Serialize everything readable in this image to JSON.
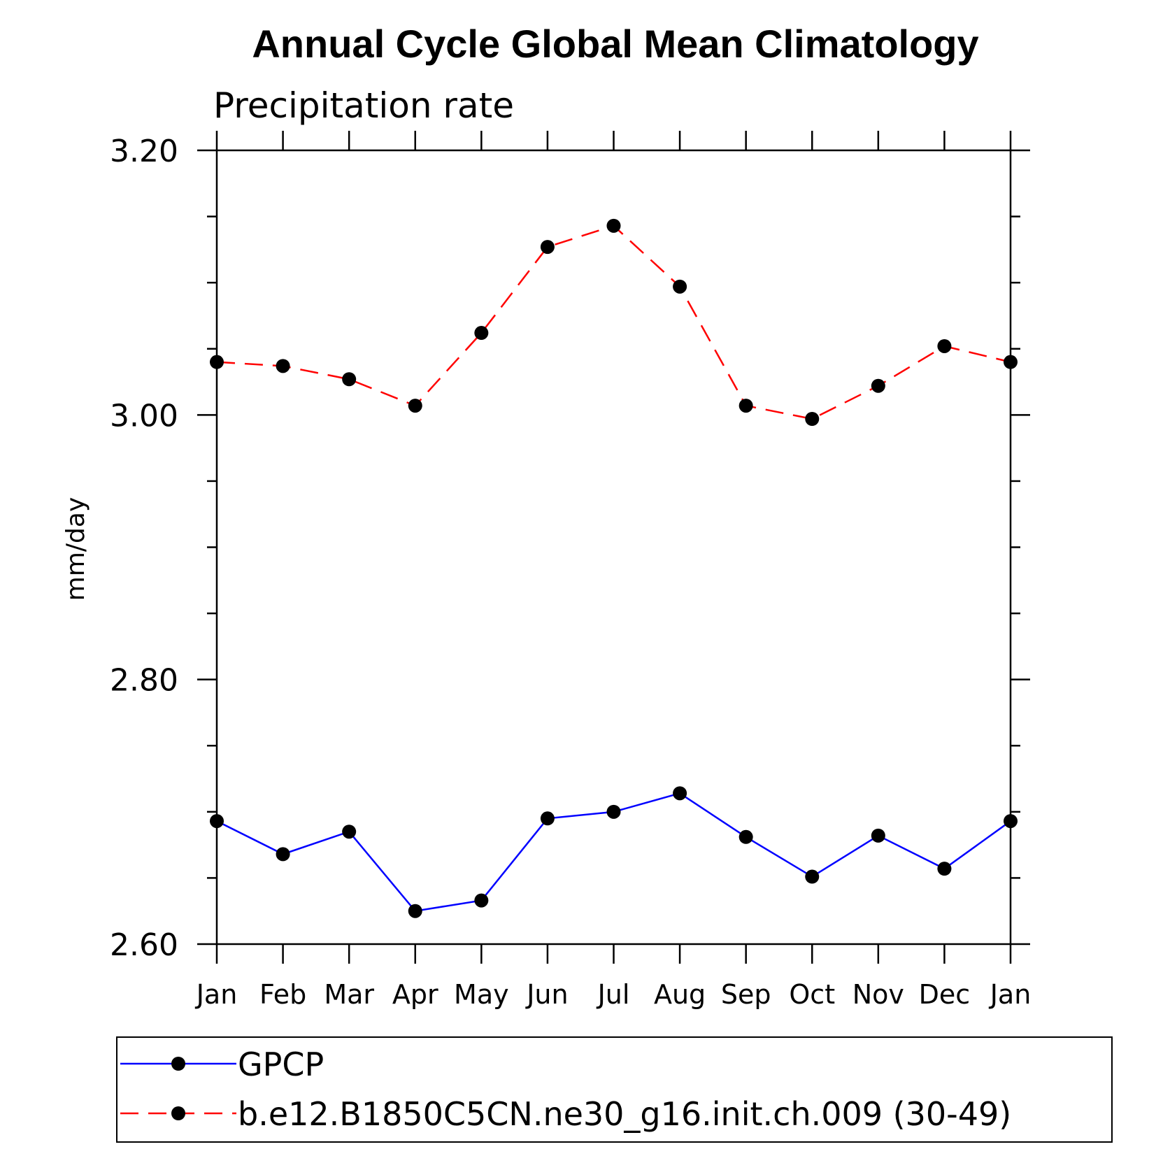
{
  "chart_data": {
    "type": "line",
    "title": "Annual Cycle Global Mean Climatology",
    "subtitle": "Precipitation rate",
    "xlabel": "",
    "ylabel": "mm/day",
    "categories": [
      "Jan",
      "Feb",
      "Mar",
      "Apr",
      "May",
      "Jun",
      "Jul",
      "Aug",
      "Sep",
      "Oct",
      "Nov",
      "Dec",
      "Jan"
    ],
    "ylim": [
      2.6,
      3.2
    ],
    "yticks": [
      2.6,
      2.8,
      3.0,
      3.2
    ],
    "ytick_labels": [
      "2.60",
      "2.80",
      "3.00",
      "3.20"
    ],
    "grid": false,
    "legend_position": "bottom",
    "series": [
      {
        "name": "GPCP",
        "color": "#0000ff",
        "line_style": "solid",
        "marker": "filled-circle",
        "values": [
          2.693,
          2.668,
          2.685,
          2.625,
          2.633,
          2.695,
          2.7,
          2.714,
          2.681,
          2.651,
          2.682,
          2.657,
          2.693
        ]
      },
      {
        "name": "b.e12.B1850C5CN.ne30_g16.init.ch.009 (30-49)",
        "color": "#ff0000",
        "line_style": "dashed",
        "marker": "filled-circle",
        "values": [
          3.04,
          3.037,
          3.027,
          3.007,
          3.062,
          3.127,
          3.143,
          3.097,
          3.007,
          2.997,
          3.022,
          3.052,
          3.04
        ]
      }
    ]
  }
}
